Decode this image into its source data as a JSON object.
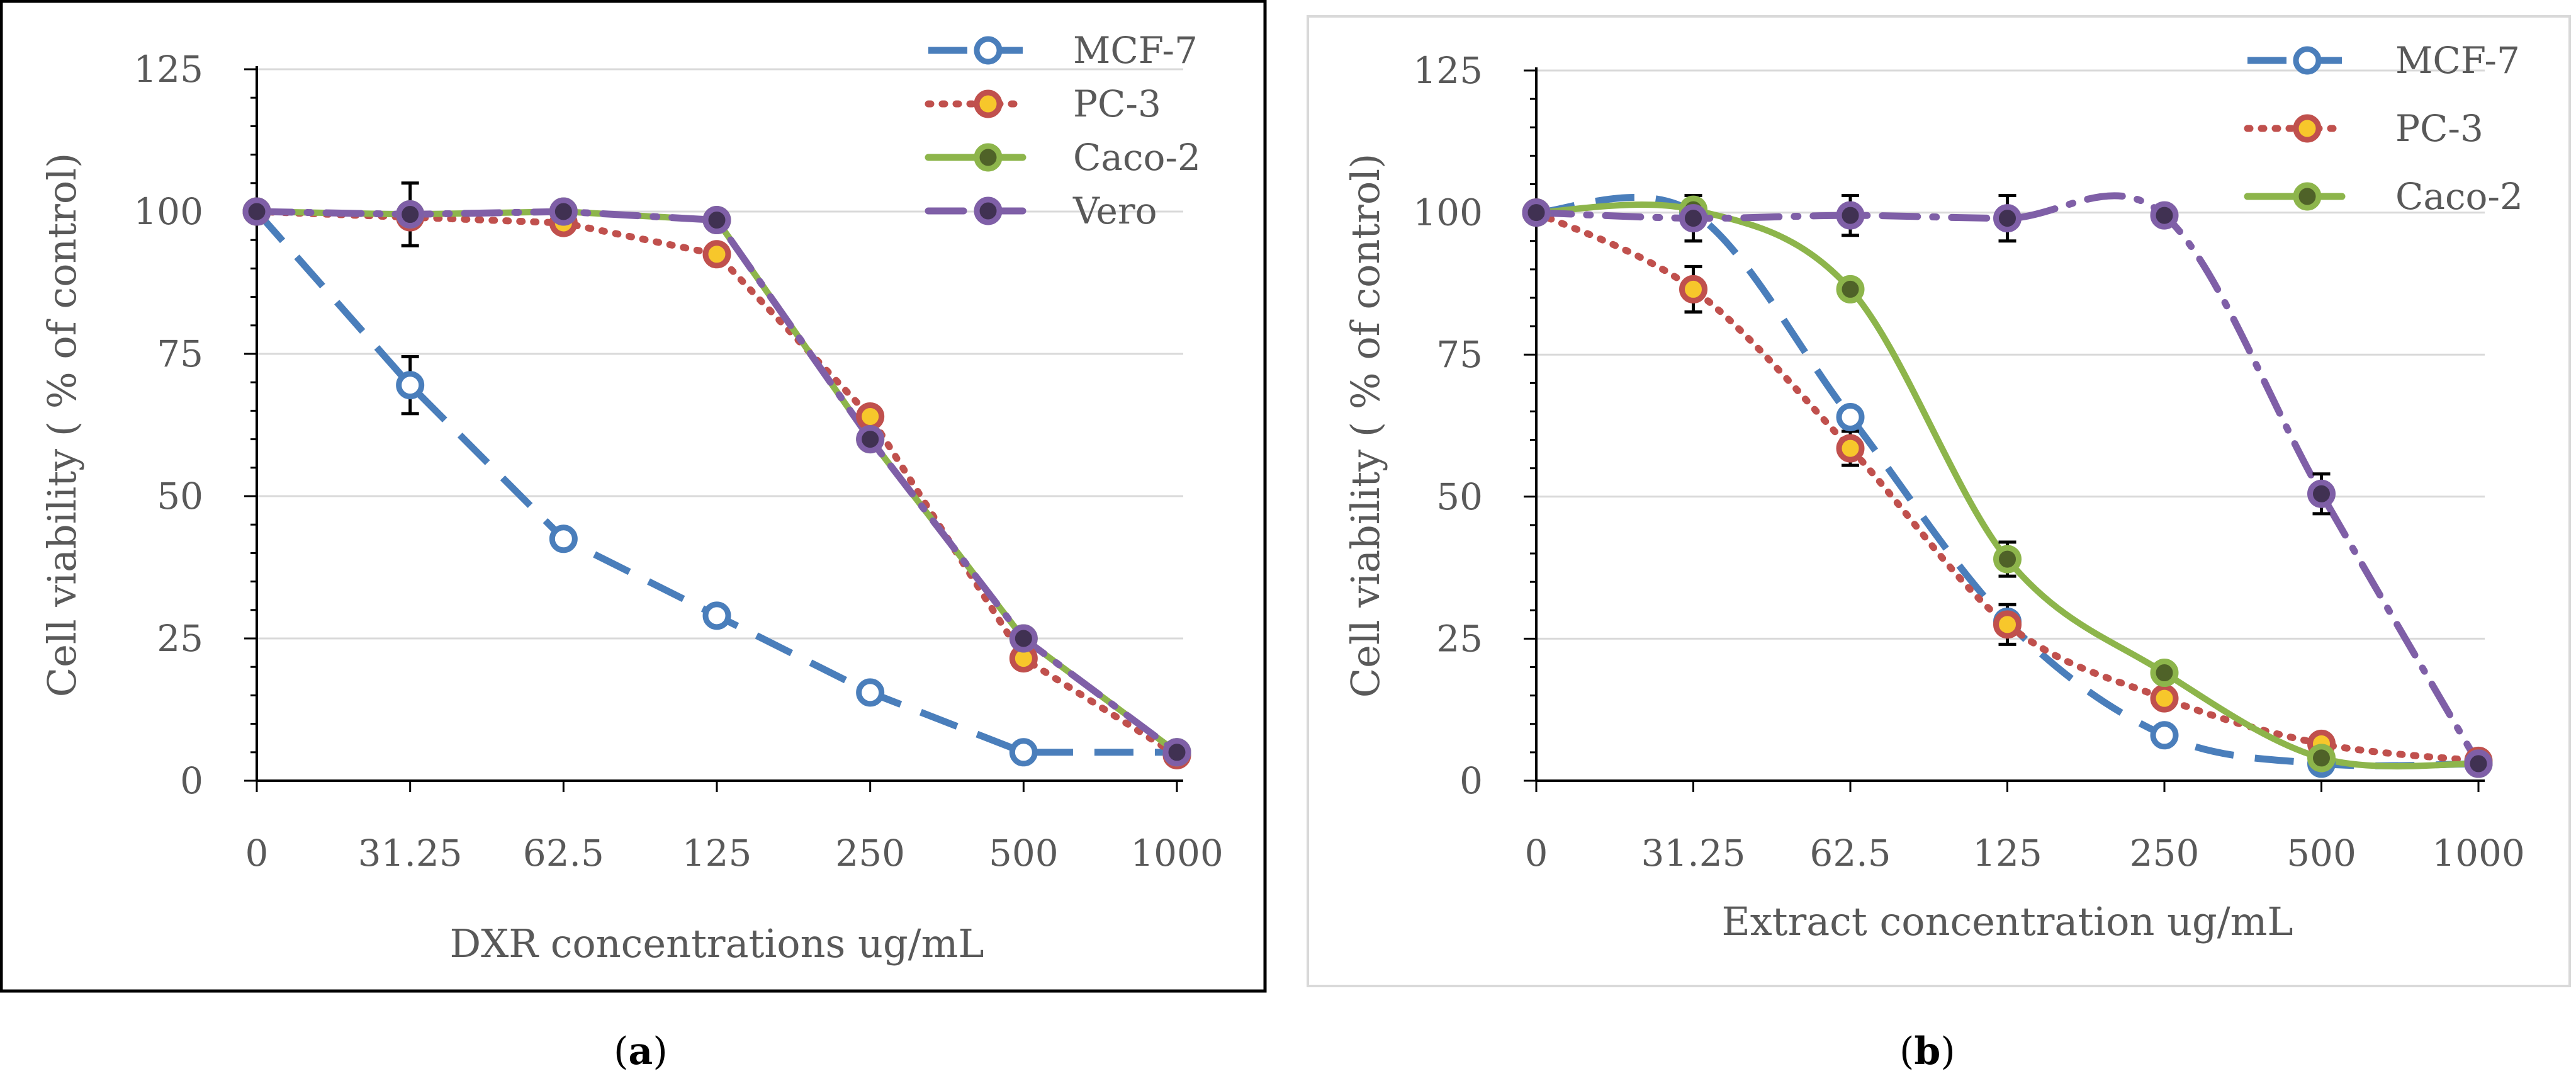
{
  "captions": [
    {
      "open": "(",
      "letter": "a",
      "close": ")"
    },
    {
      "open": "(",
      "letter": "b",
      "close": ")"
    }
  ],
  "chart_data": [
    {
      "id": "a",
      "type": "line",
      "title": "",
      "xlabel": "DXR concentrations ug/mL",
      "ylabel": "Cell viability ( % of control)",
      "categories": [
        "0",
        "31.25",
        "62.5",
        "125",
        "250",
        "500",
        "1000"
      ],
      "ylim": [
        0,
        125
      ],
      "yticks": [
        0,
        25,
        50,
        75,
        100,
        125
      ],
      "grid": true,
      "legend_position": "top-right",
      "border_color": "#000000",
      "series": [
        {
          "name": "MCF-7",
          "color": "#4a7ebb",
          "line_style": "dashed",
          "marker": "hollow",
          "values": [
            100,
            69.5,
            42.5,
            29,
            15.5,
            5,
            5
          ],
          "error": [
            null,
            5,
            null,
            null,
            null,
            null,
            null
          ]
        },
        {
          "name": "PC-3",
          "color": "#c0504d",
          "line_style": "dotted",
          "marker": "filled",
          "marker_fill": "#f7c72b",
          "values": [
            100,
            99,
            98,
            92.5,
            64,
            21.5,
            4.5
          ],
          "error": [
            null,
            null,
            null,
            null,
            null,
            null,
            null
          ]
        },
        {
          "name": "Caco-2",
          "color": "#8db54b",
          "line_style": "solid",
          "marker": "filled",
          "marker_fill": "#4f6228",
          "values": [
            100,
            99.5,
            100,
            98.5,
            60,
            25,
            5
          ],
          "error": [
            null,
            null,
            null,
            null,
            null,
            null,
            null
          ]
        },
        {
          "name": "Vero",
          "color": "#7f5fa7",
          "line_style": "dash-dot",
          "marker": "filled",
          "marker_fill": "#403152",
          "values": [
            100,
            99.5,
            100,
            98.5,
            60,
            25,
            5
          ],
          "error": [
            null,
            5.5,
            null,
            null,
            null,
            null,
            null
          ]
        }
      ]
    },
    {
      "id": "b",
      "type": "line",
      "title": "",
      "xlabel": "Extract concentration ug/mL",
      "ylabel": "Cell viability ( % of control)",
      "categories": [
        "0",
        "31.25",
        "62.5",
        "125",
        "250",
        "500",
        "1000"
      ],
      "ylim": [
        0,
        125
      ],
      "yticks": [
        0,
        25,
        50,
        75,
        100,
        125
      ],
      "grid": true,
      "legend_position": "top-right",
      "border_color": "#d9d9d9",
      "series": [
        {
          "name": "MCF-7",
          "color": "#4a7ebb",
          "line_style": "dashed",
          "marker": "hollow",
          "smooth": true,
          "values": [
            100,
            100,
            64,
            28,
            8,
            3,
            3
          ],
          "error": [
            null,
            null,
            null,
            null,
            null,
            null,
            null
          ]
        },
        {
          "name": "PC-3",
          "color": "#c0504d",
          "line_style": "dotted",
          "marker": "filled",
          "marker_fill": "#f7c72b",
          "smooth": true,
          "values": [
            100,
            86.5,
            58.5,
            27.5,
            14.5,
            6.5,
            3.5
          ],
          "error": [
            null,
            4,
            3,
            3.5,
            null,
            null,
            null
          ]
        },
        {
          "name": "Caco-2",
          "color": "#8db54b",
          "line_style": "solid",
          "marker": "filled",
          "marker_fill": "#4f6228",
          "smooth": true,
          "values": [
            100,
            100.5,
            86.5,
            39,
            19,
            4,
            3
          ],
          "error": [
            null,
            null,
            null,
            3,
            null,
            null,
            null
          ]
        },
        {
          "name": "",
          "color": "#7f5fa7",
          "line_style": "dash-dot",
          "marker": "filled",
          "marker_fill": "#403152",
          "smooth": true,
          "in_legend": false,
          "values": [
            100,
            99,
            99.5,
            99,
            99.5,
            50.5,
            3
          ],
          "error": [
            null,
            4,
            3.5,
            4,
            null,
            3.5,
            null
          ]
        }
      ]
    }
  ]
}
